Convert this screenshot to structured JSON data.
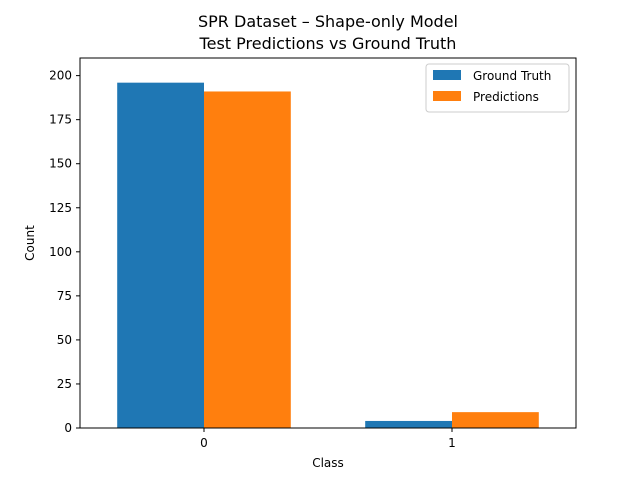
{
  "chart_data": {
    "type": "bar",
    "title": "SPR Dataset – Shape-only Model",
    "subtitle": "Test Predictions vs Ground Truth",
    "xlabel": "Class",
    "ylabel": "Count",
    "categories": [
      "0",
      "1"
    ],
    "series": [
      {
        "name": "Ground Truth",
        "values": [
          196,
          4
        ],
        "color": "#1f77b4"
      },
      {
        "name": "Predictions",
        "values": [
          191,
          9
        ],
        "color": "#ff7f0e"
      }
    ],
    "ylim": [
      0,
      210
    ],
    "yticks": [
      0,
      25,
      50,
      75,
      100,
      125,
      150,
      175,
      200
    ],
    "grid": false,
    "legend_position": "top-right"
  }
}
